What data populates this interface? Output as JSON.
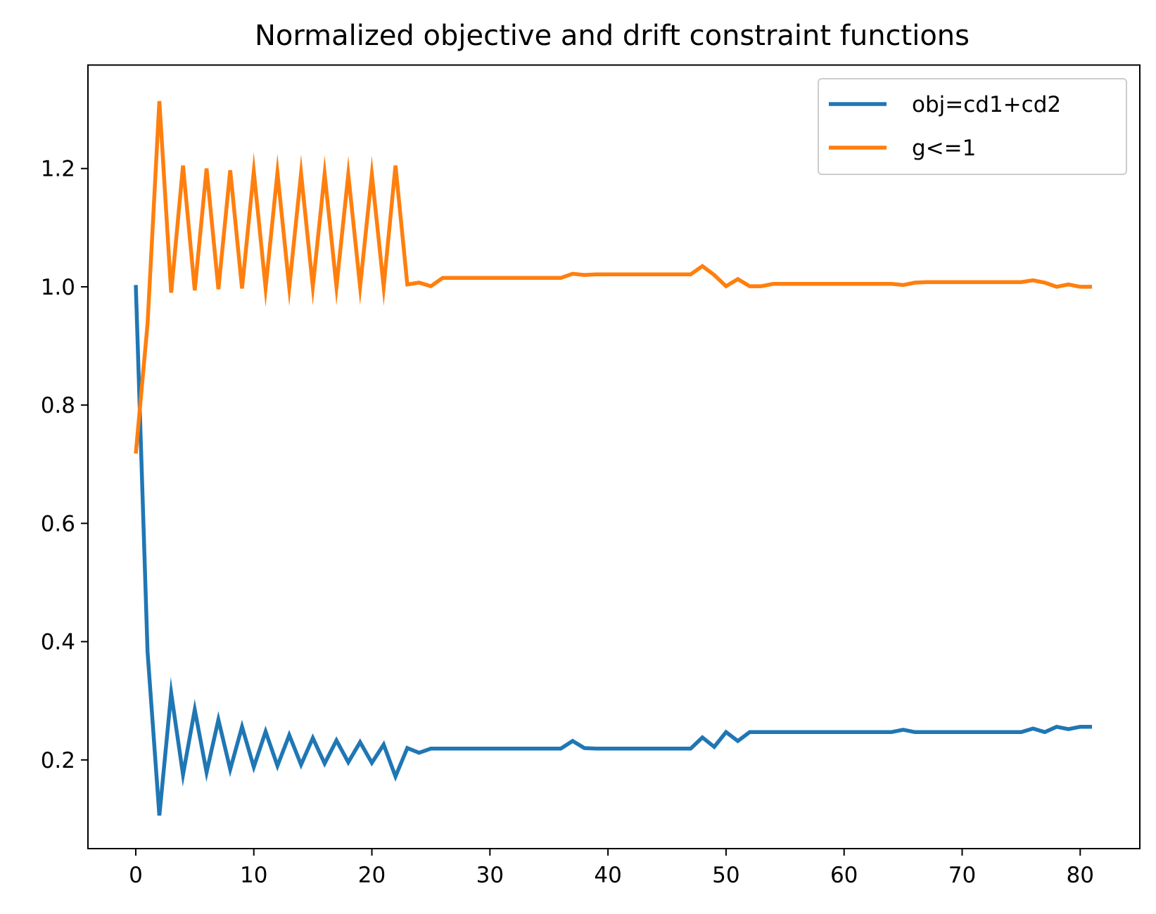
{
  "chart_data": {
    "type": "line",
    "title": "Normalized objective and drift constraint functions",
    "xlabel": "",
    "ylabel": "",
    "xlim": [
      -4.05,
      85.05
    ],
    "ylim": [
      0.05,
      1.375
    ],
    "x_ticks": [
      0,
      10,
      20,
      30,
      40,
      50,
      60,
      70,
      80
    ],
    "y_ticks": [
      0.2,
      0.4,
      0.6,
      0.8,
      1.0,
      1.2
    ],
    "y_tick_labels": [
      "0.2",
      "0.4",
      "0.6",
      "0.8",
      "1.0",
      "1.2"
    ],
    "grid": false,
    "legend": "top-right",
    "x": [
      0,
      1,
      2,
      3,
      4,
      5,
      6,
      7,
      8,
      9,
      10,
      11,
      12,
      13,
      14,
      15,
      16,
      17,
      18,
      19,
      20,
      21,
      22,
      23,
      24,
      25,
      26,
      27,
      28,
      29,
      30,
      31,
      32,
      33,
      34,
      35,
      36,
      37,
      38,
      39,
      40,
      41,
      42,
      43,
      44,
      45,
      46,
      47,
      48,
      49,
      50,
      51,
      52,
      53,
      54,
      55,
      56,
      57,
      58,
      59,
      60,
      61,
      62,
      63,
      64,
      65,
      66,
      67,
      68,
      69,
      70,
      71,
      72,
      73,
      74,
      75,
      76,
      77,
      78,
      79,
      80,
      81
    ],
    "series": [
      {
        "name": "obj=cd1+cd2",
        "color": "#1f77b4",
        "values": [
          1.003,
          0.383,
          0.106,
          0.313,
          0.175,
          0.285,
          0.179,
          0.268,
          0.184,
          0.256,
          0.188,
          0.248,
          0.19,
          0.242,
          0.192,
          0.237,
          0.194,
          0.233,
          0.196,
          0.23,
          0.195,
          0.226,
          0.172,
          0.22,
          0.212,
          0.219,
          0.219,
          0.219,
          0.219,
          0.219,
          0.219,
          0.219,
          0.219,
          0.219,
          0.219,
          0.219,
          0.219,
          0.232,
          0.22,
          0.219,
          0.219,
          0.219,
          0.219,
          0.219,
          0.219,
          0.219,
          0.219,
          0.219,
          0.238,
          0.222,
          0.247,
          0.232,
          0.247,
          0.247,
          0.247,
          0.247,
          0.247,
          0.247,
          0.247,
          0.247,
          0.247,
          0.247,
          0.247,
          0.247,
          0.247,
          0.251,
          0.247,
          0.247,
          0.247,
          0.247,
          0.247,
          0.247,
          0.247,
          0.247,
          0.247,
          0.247,
          0.253,
          0.247,
          0.256,
          0.252,
          0.256,
          0.256
        ]
      },
      {
        "name": "g<=1",
        "color": "#ff7f0e",
        "values": [
          0.718,
          0.937,
          1.314,
          0.99,
          1.205,
          0.994,
          1.2,
          0.996,
          1.197,
          0.997,
          1.195,
          0.998,
          1.193,
          0.999,
          1.192,
          1.0,
          1.191,
          1.0,
          1.19,
          1.0,
          1.19,
          1.0,
          1.205,
          1.004,
          1.007,
          1.001,
          1.015,
          1.015,
          1.015,
          1.015,
          1.015,
          1.015,
          1.015,
          1.015,
          1.015,
          1.015,
          1.015,
          1.022,
          1.02,
          1.021,
          1.021,
          1.021,
          1.021,
          1.021,
          1.021,
          1.021,
          1.021,
          1.021,
          1.035,
          1.02,
          1.001,
          1.013,
          1.001,
          1.001,
          1.005,
          1.005,
          1.005,
          1.005,
          1.005,
          1.005,
          1.005,
          1.005,
          1.005,
          1.005,
          1.005,
          1.003,
          1.007,
          1.008,
          1.008,
          1.008,
          1.008,
          1.008,
          1.008,
          1.008,
          1.008,
          1.008,
          1.011,
          1.007,
          1.0,
          1.004,
          1.0,
          1.0
        ]
      }
    ]
  }
}
